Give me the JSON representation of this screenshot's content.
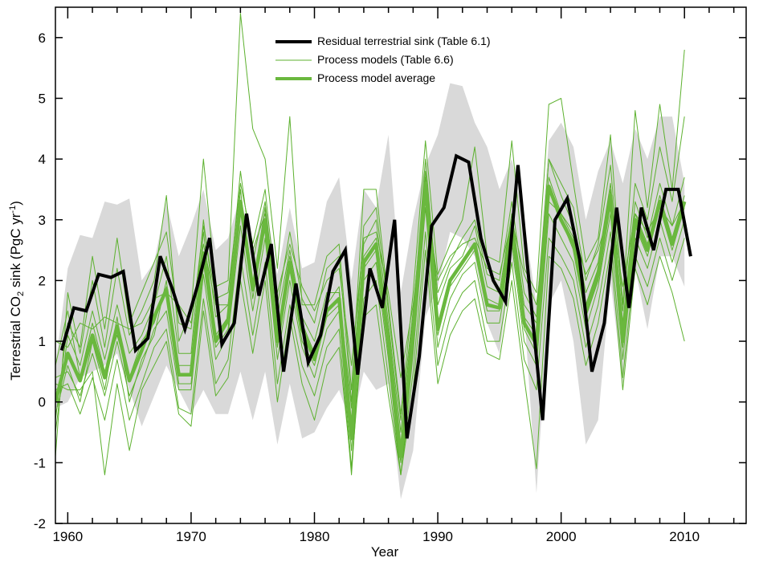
{
  "chart_data": {
    "type": "line",
    "xlabel": "Year",
    "ylabel_parts": {
      "prefix": "Terrestrial CO",
      "sub": "2",
      "middle": " sink (PgC yr",
      "sup": "-1",
      "suffix": ")"
    },
    "xlim": [
      1959,
      2015
    ],
    "ylim": [
      -2,
      6.5
    ],
    "x_ticks": [
      1960,
      1970,
      1980,
      1990,
      2000,
      2010
    ],
    "y_ticks": [
      -2,
      -1,
      0,
      1,
      2,
      3,
      4,
      5,
      6
    ],
    "grid": false,
    "legend_placement": "top-center",
    "legend": [
      {
        "label": "Residual terrestrial sink (Table 6.1)",
        "color": "#000000",
        "style": "thick"
      },
      {
        "label": "Process models (Table 6.6)",
        "color": "#5db12f",
        "style": "thin"
      },
      {
        "label": "Process model average",
        "color": "#6ab83e",
        "style": "medium"
      }
    ],
    "colors": {
      "residual": "#000000",
      "models": "#5db12f",
      "average": "#6ab83e",
      "uncertainty_band": "#d9d9d9"
    },
    "uncertainty_band": {
      "x": [
        1959,
        1960,
        1961,
        1962,
        1963,
        1964,
        1965,
        1966,
        1967,
        1968,
        1969,
        1970,
        1971,
        1972,
        1973,
        1974,
        1975,
        1976,
        1977,
        1978,
        1979,
        1980,
        1981,
        1982,
        1983,
        1984,
        1985,
        1986,
        1987,
        1988,
        1989,
        1990,
        1991,
        1992,
        1993,
        1994,
        1995,
        1996,
        1997,
        1998,
        1999,
        2000,
        2001,
        2002,
        2003,
        2004,
        2005,
        2006,
        2007,
        2008,
        2009,
        2010
      ],
      "lower": [
        -0.1,
        0.0,
        0.4,
        0.5,
        0.6,
        0.8,
        0.2,
        -0.4,
        0.1,
        0.6,
        0.2,
        -0.2,
        0.2,
        -0.2,
        -0.2,
        0.5,
        -0.3,
        0.5,
        -0.7,
        0.3,
        -0.6,
        -0.5,
        -0.1,
        0.2,
        -0.4,
        0.5,
        0.2,
        0.3,
        -1.6,
        -0.8,
        1.4,
        1.9,
        2.8,
        2.7,
        2.4,
        1.3,
        0.8,
        2.3,
        1.5,
        -1.5,
        1.6,
        2.0,
        1.0,
        -0.7,
        -0.3,
        2.0,
        0.3,
        2.2,
        1.2,
        2.4,
        2.4,
        1.9
      ],
      "upper": [
        0.6,
        2.2,
        2.75,
        2.7,
        3.3,
        3.25,
        3.35,
        2.0,
        2.3,
        3.3,
        2.4,
        2.9,
        3.5,
        2.5,
        2.7,
        3.4,
        2.5,
        3.3,
        2.1,
        3.2,
        2.2,
        2.3,
        3.3,
        3.7,
        2.0,
        3.5,
        3.2,
        4.4,
        1.8,
        3.0,
        3.9,
        4.4,
        5.25,
        5.2,
        4.6,
        4.2,
        3.5,
        4.0,
        3.0,
        1.6,
        4.3,
        4.6,
        4.2,
        3.0,
        3.8,
        4.3,
        3.6,
        4.5,
        4.0,
        4.7,
        4.7,
        3.6
      ]
    },
    "series": [
      {
        "name": "Residual terrestrial sink (Table 6.1)",
        "x": [
          1959.5,
          1960.5,
          1961.5,
          1962.5,
          1963.5,
          1964.5,
          1965.5,
          1966.5,
          1967.5,
          1968.5,
          1969.5,
          1970.5,
          1971.5,
          1972.5,
          1973.5,
          1974.5,
          1975.5,
          1976.5,
          1977.5,
          1978.5,
          1979.5,
          1980.5,
          1981.5,
          1982.5,
          1983.5,
          1984.5,
          1985.5,
          1986.5,
          1987.5,
          1988.5,
          1989.5,
          1990.5,
          1991.5,
          1992.5,
          1993.5,
          1994.5,
          1995.5,
          1996.5,
          1997.5,
          1998.5,
          1999.5,
          2000.5,
          2001.5,
          2002.5,
          2003.5,
          2004.5,
          2005.5,
          2006.5,
          2007.5,
          2008.5,
          2009.5,
          2010.5
        ],
        "values": [
          0.85,
          1.55,
          1.5,
          2.1,
          2.05,
          2.15,
          0.85,
          1.05,
          2.4,
          1.85,
          1.2,
          1.9,
          2.7,
          0.95,
          1.3,
          3.1,
          1.75,
          2.6,
          0.5,
          1.95,
          0.65,
          1.1,
          2.15,
          2.5,
          0.45,
          2.2,
          1.55,
          3.0,
          -0.6,
          0.75,
          2.9,
          3.2,
          4.05,
          3.95,
          2.7,
          2.0,
          1.65,
          3.9,
          1.75,
          -0.3,
          3.0,
          3.35,
          2.35,
          0.5,
          1.3,
          3.2,
          1.55,
          3.2,
          2.5,
          3.5,
          3.5,
          2.4
        ]
      },
      {
        "name": "Process model average",
        "x": [
          1959,
          1960,
          1961,
          1962,
          1963,
          1964,
          1965,
          1966,
          1967,
          1968,
          1969,
          1970,
          1971,
          1972,
          1973,
          1974,
          1975,
          1976,
          1977,
          1978,
          1979,
          1980,
          1981,
          1982,
          1983,
          1984,
          1985,
          1986,
          1987,
          1988,
          1989,
          1990,
          1991,
          1992,
          1993,
          1994,
          1995,
          1996,
          1997,
          1998,
          1999,
          2000,
          2001,
          2002,
          2003,
          2004,
          2005,
          2006,
          2007,
          2008,
          2009,
          2010
        ],
        "values": [
          0.0,
          0.8,
          0.35,
          1.1,
          0.4,
          1.25,
          0.35,
          0.85,
          1.4,
          1.85,
          0.45,
          0.45,
          2.45,
          1.0,
          1.35,
          3.3,
          1.85,
          3.0,
          1.0,
          2.3,
          1.2,
          0.7,
          1.5,
          1.7,
          -0.6,
          2.3,
          2.6,
          1.0,
          -0.9,
          1.1,
          3.6,
          1.2,
          2.0,
          2.3,
          2.6,
          1.6,
          1.55,
          2.9,
          1.3,
          0.95,
          3.55,
          3.0,
          2.6,
          1.5,
          2.1,
          3.4,
          1.0,
          3.0,
          2.5,
          3.3,
          2.6,
          3.3
        ]
      }
    ],
    "model_series": [
      {
        "values": [
          -0.5,
          1.1,
          0.6,
          1.5,
          0.7,
          1.6,
          0.8,
          1.1,
          1.6,
          2.4,
          0.8,
          0.8,
          3.0,
          1.4,
          1.6,
          3.8,
          2.3,
          3.3,
          1.4,
          2.5,
          1.4,
          1.0,
          1.8,
          1.8,
          -0.1,
          2.6,
          3.0,
          1.3,
          -0.5,
          1.4,
          4.0,
          1.6,
          2.2,
          2.4,
          2.9,
          1.9,
          1.8,
          3.1,
          1.6,
          1.3,
          4.0,
          3.4,
          2.9,
          1.8,
          2.3,
          3.6,
          1.3,
          3.3,
          2.7,
          3.6,
          2.9,
          3.7
        ]
      },
      {
        "values": [
          0.4,
          0.5,
          0.1,
          0.8,
          0.1,
          1.0,
          0.1,
          0.6,
          1.2,
          1.5,
          0.2,
          0.2,
          2.1,
          0.7,
          1.1,
          2.9,
          1.5,
          2.7,
          0.7,
          2.0,
          0.9,
          0.4,
          1.2,
          1.5,
          -1.1,
          2.0,
          2.3,
          0.7,
          -1.2,
          0.8,
          3.2,
          0.9,
          1.7,
          2.1,
          2.3,
          1.3,
          1.3,
          2.6,
          1.0,
          0.6,
          3.1,
          2.7,
          2.3,
          1.2,
          1.9,
          3.1,
          0.7,
          2.7,
          2.2,
          3.0,
          2.3,
          3.0
        ]
      },
      {
        "values": [
          -0.9,
          1.8,
          0.8,
          2.0,
          0.9,
          2.2,
          1.1,
          1.5,
          2.0,
          3.4,
          1.0,
          1.5,
          4.0,
          1.9,
          2.0,
          6.4,
          4.5,
          4.0,
          2.2,
          4.7,
          1.6,
          1.6,
          2.4,
          2.6,
          0.2,
          3.5,
          3.5,
          1.6,
          -0.2,
          1.8,
          4.3,
          2.1,
          2.6,
          3.0,
          4.2,
          2.4,
          2.3,
          4.3,
          2.2,
          1.8,
          4.9,
          5.0,
          3.6,
          2.3,
          2.7,
          4.4,
          1.6,
          4.8,
          3.2,
          4.9,
          3.5,
          5.8
        ]
      },
      {
        "values": [
          0.2,
          0.3,
          -0.2,
          0.4,
          -0.3,
          0.7,
          -0.3,
          0.3,
          0.9,
          1.2,
          -0.1,
          -0.2,
          1.7,
          0.3,
          0.7,
          2.4,
          1.1,
          2.3,
          0.3,
          1.6,
          0.6,
          0.1,
          0.9,
          1.2,
          -1.2,
          1.7,
          2.0,
          0.4,
          -1.2,
          0.5,
          2.8,
          0.6,
          1.4,
          1.8,
          2.0,
          1.0,
          1.0,
          2.3,
          0.7,
          0.2,
          2.7,
          2.4,
          2.0,
          0.9,
          1.6,
          2.8,
          0.4,
          2.4,
          1.9,
          2.7,
          2.0,
          2.7
        ]
      },
      {
        "values": [
          1.0,
          0.9,
          1.3,
          1.2,
          1.4,
          1.3,
          1.2,
          1.3,
          1.7,
          1.8,
          1.6,
          1.3,
          2.6,
          1.6,
          1.6,
          3.3,
          2.5,
          3.1,
          1.8,
          2.6,
          1.9,
          1.5,
          2.0,
          2.2,
          0.6,
          2.7,
          2.8,
          1.8,
          0.4,
          1.6,
          3.4,
          2.0,
          2.4,
          2.6,
          2.7,
          2.2,
          2.1,
          3.0,
          2.1,
          1.6,
          3.3,
          3.1,
          2.8,
          2.1,
          2.5,
          3.2,
          1.9,
          3.1,
          2.8,
          3.2,
          2.9,
          3.3
        ]
      },
      {
        "values": [
          -0.2,
          0.6,
          0.0,
          1.0,
          0.2,
          1.4,
          0.0,
          0.7,
          1.1,
          2.0,
          0.3,
          0.3,
          2.3,
          0.9,
          1.2,
          3.5,
          1.7,
          2.9,
          0.9,
          2.2,
          1.0,
          0.6,
          1.4,
          1.6,
          -0.8,
          2.2,
          2.5,
          0.9,
          -1.0,
          1.0,
          3.5,
          1.1,
          1.9,
          2.2,
          2.5,
          1.5,
          1.5,
          2.8,
          1.2,
          0.8,
          3.5,
          3.0,
          2.5,
          1.4,
          2.0,
          3.3,
          0.9,
          2.9,
          2.4,
          3.2,
          2.5,
          3.2
        ]
      },
      {
        "values": [
          0.6,
          1.5,
          0.4,
          1.3,
          0.5,
          1.1,
          0.4,
          1.0,
          1.3,
          1.9,
          0.6,
          0.6,
          2.8,
          1.1,
          1.4,
          3.2,
          1.9,
          3.2,
          1.1,
          2.4,
          1.3,
          0.8,
          1.6,
          1.9,
          -0.4,
          2.4,
          2.7,
          1.1,
          -0.8,
          1.2,
          3.7,
          1.3,
          2.0,
          2.3,
          2.6,
          1.7,
          1.6,
          3.0,
          1.4,
          1.1,
          3.7,
          3.1,
          2.7,
          1.6,
          2.2,
          3.5,
          1.1,
          3.1,
          2.6,
          3.4,
          2.7,
          3.4
        ]
      },
      {
        "values": [
          -0.3,
          1.3,
          0.9,
          2.4,
          1.2,
          2.7,
          1.3,
          1.8,
          2.3,
          2.8,
          1.3,
          1.2,
          2.9,
          1.7,
          1.8,
          3.6,
          2.6,
          3.5,
          1.6,
          2.8,
          1.7,
          1.3,
          2.2,
          2.4,
          0.0,
          2.9,
          3.2,
          1.5,
          -0.3,
          1.5,
          3.8,
          1.8,
          2.3,
          2.7,
          3.0,
          2.1,
          2.0,
          3.3,
          1.8,
          1.4,
          4.0,
          3.6,
          3.2,
          2.0,
          2.6,
          3.9,
          1.5,
          3.6,
          3.0,
          4.2,
          3.3,
          4.7
        ]
      },
      {
        "values": [
          0.3,
          0.2,
          0.2,
          0.5,
          -1.2,
          0.3,
          -0.8,
          0.2,
          0.6,
          1.0,
          -0.2,
          -0.4,
          1.5,
          0.1,
          0.4,
          2.0,
          0.8,
          2.0,
          0.0,
          1.4,
          0.3,
          -0.3,
          0.6,
          0.9,
          -1.1,
          1.4,
          1.6,
          0.1,
          -1.2,
          0.2,
          2.5,
          0.3,
          1.1,
          1.5,
          1.7,
          0.8,
          0.7,
          2.0,
          0.4,
          -1.1,
          2.4,
          2.2,
          1.7,
          0.6,
          1.3,
          2.5,
          0.2,
          2.2,
          1.6,
          2.4,
          1.8,
          1.0
        ]
      }
    ]
  }
}
